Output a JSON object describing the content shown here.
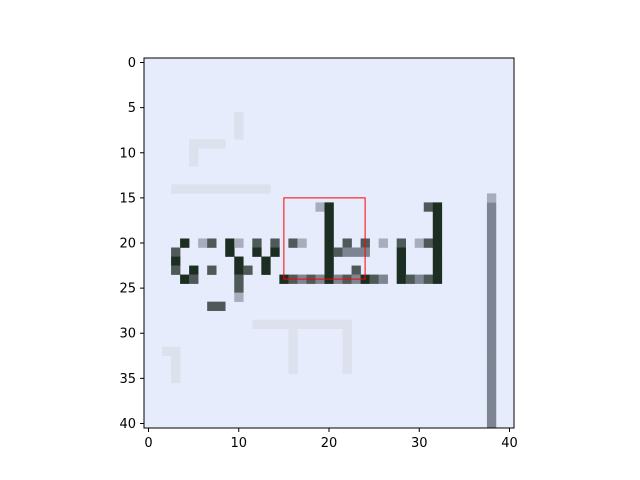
{
  "chart_data": {
    "type": "heatmap",
    "title": "",
    "xlabel": "",
    "ylabel": "",
    "grid": false,
    "xlim": [
      -0.5,
      40.5
    ],
    "ylim": [
      40.5,
      -0.5
    ],
    "y_inverted": true,
    "xticks": [
      0,
      10,
      20,
      30,
      40
    ],
    "yticks": [
      0,
      5,
      10,
      15,
      20,
      25,
      30,
      35,
      40
    ],
    "colors": {
      "background": "#e6ecfb",
      "ink_dark": "#1c2e22",
      "ink_mid": "#4f5a58",
      "ink_gray": "#7d8592",
      "ink_light": "#a8adbd",
      "faint": "#dde1ee",
      "rectangle": "#ff0000"
    },
    "pixel_runs": [
      {
        "row": 16,
        "start": 19,
        "end": 20,
        "shade": "ink_light"
      },
      {
        "row": 16,
        "start": 20,
        "end": 21,
        "shade": "ink_dark"
      },
      {
        "row": 16,
        "start": 31,
        "end": 32,
        "shade": "ink_mid"
      },
      {
        "row": 16,
        "start": 32,
        "end": 33,
        "shade": "ink_dark"
      },
      {
        "row": 17,
        "start": 20,
        "end": 21,
        "shade": "ink_dark"
      },
      {
        "row": 17,
        "start": 32,
        "end": 33,
        "shade": "ink_dark"
      },
      {
        "row": 18,
        "start": 20,
        "end": 21,
        "shade": "ink_dark"
      },
      {
        "row": 18,
        "start": 32,
        "end": 33,
        "shade": "ink_dark"
      },
      {
        "row": 19,
        "start": 20,
        "end": 21,
        "shade": "ink_dark"
      },
      {
        "row": 19,
        "start": 32,
        "end": 33,
        "shade": "ink_dark"
      },
      {
        "row": 20,
        "start": 4,
        "end": 5,
        "shade": "ink_dark"
      },
      {
        "row": 20,
        "start": 6,
        "end": 7,
        "shade": "ink_light"
      },
      {
        "row": 20,
        "start": 7,
        "end": 8,
        "shade": "ink_mid"
      },
      {
        "row": 20,
        "start": 9,
        "end": 10,
        "shade": "ink_dark"
      },
      {
        "row": 20,
        "start": 10,
        "end": 11,
        "shade": "ink_light"
      },
      {
        "row": 20,
        "start": 12,
        "end": 13,
        "shade": "ink_mid"
      },
      {
        "row": 20,
        "start": 14,
        "end": 15,
        "shade": "ink_mid"
      },
      {
        "row": 20,
        "start": 16,
        "end": 17,
        "shade": "ink_mid"
      },
      {
        "row": 20,
        "start": 17,
        "end": 18,
        "shade": "ink_light"
      },
      {
        "row": 20,
        "start": 20,
        "end": 21,
        "shade": "ink_dark"
      },
      {
        "row": 20,
        "start": 22,
        "end": 23,
        "shade": "ink_mid"
      },
      {
        "row": 20,
        "start": 24,
        "end": 25,
        "shade": "ink_mid"
      },
      {
        "row": 20,
        "start": 26,
        "end": 27,
        "shade": "ink_light"
      },
      {
        "row": 20,
        "start": 28,
        "end": 29,
        "shade": "ink_mid"
      },
      {
        "row": 20,
        "start": 30,
        "end": 31,
        "shade": "ink_light"
      },
      {
        "row": 20,
        "start": 31,
        "end": 32,
        "shade": "ink_mid"
      },
      {
        "row": 20,
        "start": 32,
        "end": 33,
        "shade": "ink_dark"
      },
      {
        "row": 21,
        "start": 3,
        "end": 4,
        "shade": "ink_mid"
      },
      {
        "row": 21,
        "start": 9,
        "end": 10,
        "shade": "ink_dark"
      },
      {
        "row": 21,
        "start": 12,
        "end": 13,
        "shade": "ink_dark"
      },
      {
        "row": 21,
        "start": 14,
        "end": 15,
        "shade": "ink_dark"
      },
      {
        "row": 21,
        "start": 20,
        "end": 21,
        "shade": "ink_dark"
      },
      {
        "row": 21,
        "start": 21,
        "end": 22,
        "shade": "ink_mid"
      },
      {
        "row": 21,
        "start": 22,
        "end": 25,
        "shade": "ink_gray"
      },
      {
        "row": 21,
        "start": 28,
        "end": 29,
        "shade": "ink_dark"
      },
      {
        "row": 21,
        "start": 32,
        "end": 33,
        "shade": "ink_dark"
      },
      {
        "row": 22,
        "start": 3,
        "end": 4,
        "shade": "ink_dark"
      },
      {
        "row": 22,
        "start": 10,
        "end": 11,
        "shade": "ink_dark"
      },
      {
        "row": 22,
        "start": 13,
        "end": 14,
        "shade": "ink_dark"
      },
      {
        "row": 22,
        "start": 20,
        "end": 21,
        "shade": "ink_dark"
      },
      {
        "row": 22,
        "start": 28,
        "end": 29,
        "shade": "ink_dark"
      },
      {
        "row": 22,
        "start": 32,
        "end": 33,
        "shade": "ink_dark"
      },
      {
        "row": 23,
        "start": 3,
        "end": 4,
        "shade": "ink_mid"
      },
      {
        "row": 23,
        "start": 5,
        "end": 6,
        "shade": "ink_dark"
      },
      {
        "row": 23,
        "start": 7,
        "end": 8,
        "shade": "ink_mid"
      },
      {
        "row": 23,
        "start": 10,
        "end": 11,
        "shade": "ink_dark"
      },
      {
        "row": 23,
        "start": 11,
        "end": 12,
        "shade": "ink_mid"
      },
      {
        "row": 23,
        "start": 13,
        "end": 14,
        "shade": "ink_dark"
      },
      {
        "row": 23,
        "start": 20,
        "end": 21,
        "shade": "ink_dark"
      },
      {
        "row": 23,
        "start": 23,
        "end": 24,
        "shade": "ink_mid"
      },
      {
        "row": 23,
        "start": 28,
        "end": 29,
        "shade": "ink_dark"
      },
      {
        "row": 23,
        "start": 32,
        "end": 33,
        "shade": "ink_dark"
      },
      {
        "row": 24,
        "start": 4,
        "end": 5,
        "shade": "ink_dark"
      },
      {
        "row": 24,
        "start": 5,
        "end": 6,
        "shade": "ink_mid"
      },
      {
        "row": 24,
        "start": 10,
        "end": 11,
        "shade": "ink_mid"
      },
      {
        "row": 24,
        "start": 15,
        "end": 16,
        "shade": "ink_dark"
      },
      {
        "row": 24,
        "start": 16,
        "end": 17,
        "shade": "ink_mid"
      },
      {
        "row": 24,
        "start": 17,
        "end": 18,
        "shade": "ink_gray"
      },
      {
        "row": 24,
        "start": 18,
        "end": 19,
        "shade": "ink_mid"
      },
      {
        "row": 24,
        "start": 19,
        "end": 20,
        "shade": "ink_gray"
      },
      {
        "row": 24,
        "start": 20,
        "end": 21,
        "shade": "ink_dark"
      },
      {
        "row": 24,
        "start": 21,
        "end": 22,
        "shade": "ink_gray"
      },
      {
        "row": 24,
        "start": 22,
        "end": 23,
        "shade": "ink_mid"
      },
      {
        "row": 24,
        "start": 23,
        "end": 24,
        "shade": "ink_gray"
      },
      {
        "row": 24,
        "start": 24,
        "end": 25,
        "shade": "ink_dark"
      },
      {
        "row": 24,
        "start": 25,
        "end": 26,
        "shade": "ink_mid"
      },
      {
        "row": 24,
        "start": 26,
        "end": 27,
        "shade": "ink_gray"
      },
      {
        "row": 24,
        "start": 28,
        "end": 29,
        "shade": "ink_dark"
      },
      {
        "row": 24,
        "start": 29,
        "end": 30,
        "shade": "ink_mid"
      },
      {
        "row": 24,
        "start": 30,
        "end": 31,
        "shade": "ink_gray"
      },
      {
        "row": 24,
        "start": 31,
        "end": 32,
        "shade": "ink_mid"
      },
      {
        "row": 24,
        "start": 32,
        "end": 33,
        "shade": "ink_dark"
      },
      {
        "row": 25,
        "start": 10,
        "end": 11,
        "shade": "ink_mid"
      },
      {
        "row": 26,
        "start": 10,
        "end": 11,
        "shade": "ink_light"
      },
      {
        "row": 27,
        "start": 7,
        "end": 9,
        "shade": "ink_mid"
      },
      {
        "row": 16,
        "start": 38,
        "end": 39,
        "shade": "ink_gray"
      },
      {
        "row": 17,
        "start": 38,
        "end": 39,
        "shade": "ink_gray"
      },
      {
        "row": 18,
        "start": 38,
        "end": 39,
        "shade": "ink_gray"
      },
      {
        "row": 19,
        "start": 38,
        "end": 39,
        "shade": "ink_gray"
      },
      {
        "row": 20,
        "start": 38,
        "end": 39,
        "shade": "ink_gray"
      },
      {
        "row": 21,
        "start": 38,
        "end": 39,
        "shade": "ink_gray"
      },
      {
        "row": 22,
        "start": 38,
        "end": 39,
        "shade": "ink_gray"
      },
      {
        "row": 23,
        "start": 38,
        "end": 39,
        "shade": "ink_gray"
      },
      {
        "row": 24,
        "start": 38,
        "end": 39,
        "shade": "ink_gray"
      },
      {
        "row": 25,
        "start": 38,
        "end": 39,
        "shade": "ink_gray"
      },
      {
        "row": 26,
        "start": 38,
        "end": 39,
        "shade": "ink_gray"
      },
      {
        "row": 27,
        "start": 38,
        "end": 39,
        "shade": "ink_gray"
      },
      {
        "row": 28,
        "start": 38,
        "end": 39,
        "shade": "ink_gray"
      },
      {
        "row": 29,
        "start": 38,
        "end": 39,
        "shade": "ink_gray"
      },
      {
        "row": 30,
        "start": 38,
        "end": 39,
        "shade": "ink_gray"
      },
      {
        "row": 31,
        "start": 38,
        "end": 39,
        "shade": "ink_gray"
      },
      {
        "row": 32,
        "start": 38,
        "end": 39,
        "shade": "ink_gray"
      },
      {
        "row": 33,
        "start": 38,
        "end": 39,
        "shade": "ink_gray"
      },
      {
        "row": 34,
        "start": 38,
        "end": 39,
        "shade": "ink_gray"
      },
      {
        "row": 35,
        "start": 38,
        "end": 39,
        "shade": "ink_gray"
      },
      {
        "row": 36,
        "start": 38,
        "end": 39,
        "shade": "ink_gray"
      },
      {
        "row": 37,
        "start": 38,
        "end": 39,
        "shade": "ink_gray"
      },
      {
        "row": 38,
        "start": 38,
        "end": 39,
        "shade": "ink_gray"
      },
      {
        "row": 39,
        "start": 38,
        "end": 39,
        "shade": "ink_gray"
      },
      {
        "row": 40,
        "start": 38,
        "end": 39,
        "shade": "ink_gray"
      },
      {
        "row": 15,
        "start": 38,
        "end": 39,
        "shade": "ink_light"
      },
      {
        "row": 29,
        "start": 12,
        "end": 23,
        "shade": "faint"
      },
      {
        "row": 30,
        "start": 16,
        "end": 17,
        "shade": "faint"
      },
      {
        "row": 31,
        "start": 16,
        "end": 17,
        "shade": "faint"
      },
      {
        "row": 32,
        "start": 16,
        "end": 17,
        "shade": "faint"
      },
      {
        "row": 33,
        "start": 16,
        "end": 17,
        "shade": "faint"
      },
      {
        "row": 34,
        "start": 16,
        "end": 17,
        "shade": "faint"
      },
      {
        "row": 30,
        "start": 22,
        "end": 23,
        "shade": "faint"
      },
      {
        "row": 31,
        "start": 22,
        "end": 23,
        "shade": "faint"
      },
      {
        "row": 32,
        "start": 22,
        "end": 23,
        "shade": "faint"
      },
      {
        "row": 33,
        "start": 22,
        "end": 23,
        "shade": "faint"
      },
      {
        "row": 34,
        "start": 22,
        "end": 23,
        "shade": "faint"
      },
      {
        "row": 32,
        "start": 2,
        "end": 4,
        "shade": "faint"
      },
      {
        "row": 33,
        "start": 3,
        "end": 4,
        "shade": "faint"
      },
      {
        "row": 34,
        "start": 3,
        "end": 4,
        "shade": "faint"
      },
      {
        "row": 35,
        "start": 3,
        "end": 4,
        "shade": "faint"
      },
      {
        "row": 9,
        "start": 5,
        "end": 9,
        "shade": "faint"
      },
      {
        "row": 10,
        "start": 5,
        "end": 6,
        "shade": "faint"
      },
      {
        "row": 11,
        "start": 5,
        "end": 6,
        "shade": "faint"
      },
      {
        "row": 6,
        "start": 10,
        "end": 11,
        "shade": "faint"
      },
      {
        "row": 7,
        "start": 10,
        "end": 11,
        "shade": "faint"
      },
      {
        "row": 8,
        "start": 10,
        "end": 11,
        "shade": "faint"
      },
      {
        "row": 14,
        "start": 3,
        "end": 14,
        "shade": "faint"
      }
    ],
    "rectangle": {
      "x0": 15,
      "x1": 24,
      "y0": 15,
      "y1": 24
    }
  }
}
